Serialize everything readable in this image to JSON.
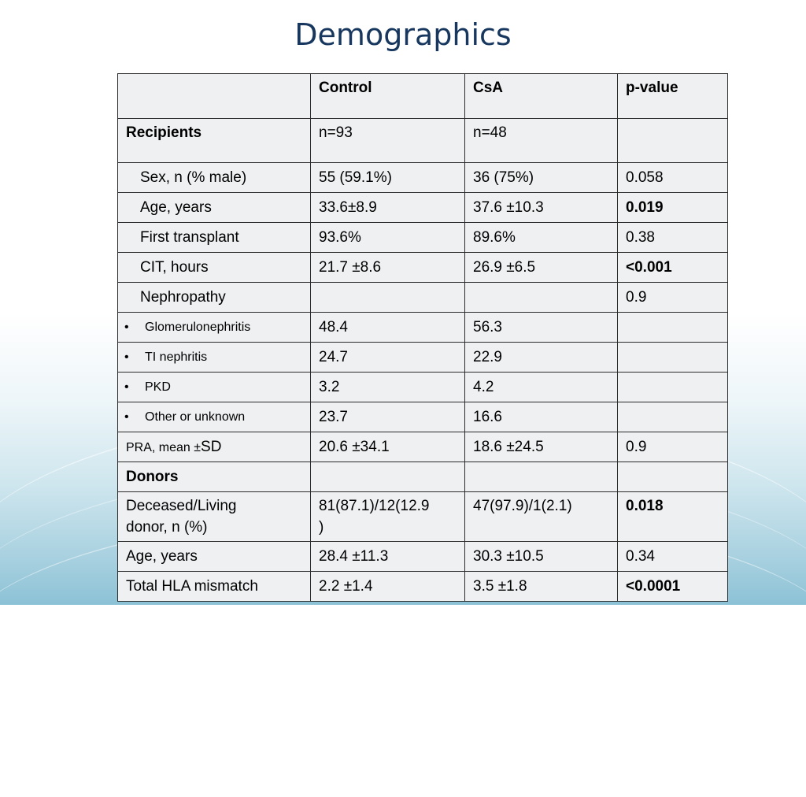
{
  "title": "Demographics",
  "header": [
    "",
    "Control",
    "CsA",
    "p-value"
  ],
  "rows": [
    {
      "label": "Recipients",
      "control": "n=93",
      "csa": "n=48",
      "p": ""
    },
    {
      "label": "Sex, n (% male)",
      "control": "55 (59.1%)",
      "csa": "36 (75%)",
      "p": "0.058"
    },
    {
      "label": "Age, years",
      "control": "33.6±8.9",
      "csa": "37.6 ±10.3",
      "p": "0.019"
    },
    {
      "label": "First transplant",
      "control": "93.6%",
      "csa": "89.6%",
      "p": "0.38"
    },
    {
      "label": "CIT, hours",
      "control": "21.7 ±8.6",
      "csa": "26.9 ±6.5",
      "p": "<0.001"
    },
    {
      "label": "Nephropathy",
      "control": "",
      "csa": "",
      "p": "0.9"
    },
    {
      "label": "Glomerulonephritis",
      "control": "48.4",
      "csa": "56.3",
      "p": ""
    },
    {
      "label": "TI nephritis",
      "control": "24.7",
      "csa": "22.9",
      "p": ""
    },
    {
      "label": "PKD",
      "control": "3.2",
      "csa": "4.2",
      "p": ""
    },
    {
      "label": "Other or unknown",
      "control": "23.7",
      "csa": "16.6",
      "p": ""
    },
    {
      "label_a": "PRA, mean ±",
      "label_b": "SD",
      "control": "20.6 ±34.1",
      "csa": "18.6 ±24.5",
      "p": "0.9"
    },
    {
      "label": "Donors",
      "control": "",
      "csa": "",
      "p": ""
    },
    {
      "label_a": "Deceased/Living",
      "label_b": "donor, n (%)",
      "control_a": "81(87.1)/12(12.9",
      "control_b": ")",
      "csa": "47(97.9)/1(2.1)",
      "p": "0.018"
    },
    {
      "label": "Age, years",
      "control": "28.4 ±11.3",
      "csa": "30.3 ±10.5",
      "p": "0.34"
    },
    {
      "label": "Total HLA mismatch",
      "control": "2.2 ±1.4",
      "csa": "3.5 ±1.8",
      "p": "<0.0001"
    }
  ],
  "bullet": "•"
}
